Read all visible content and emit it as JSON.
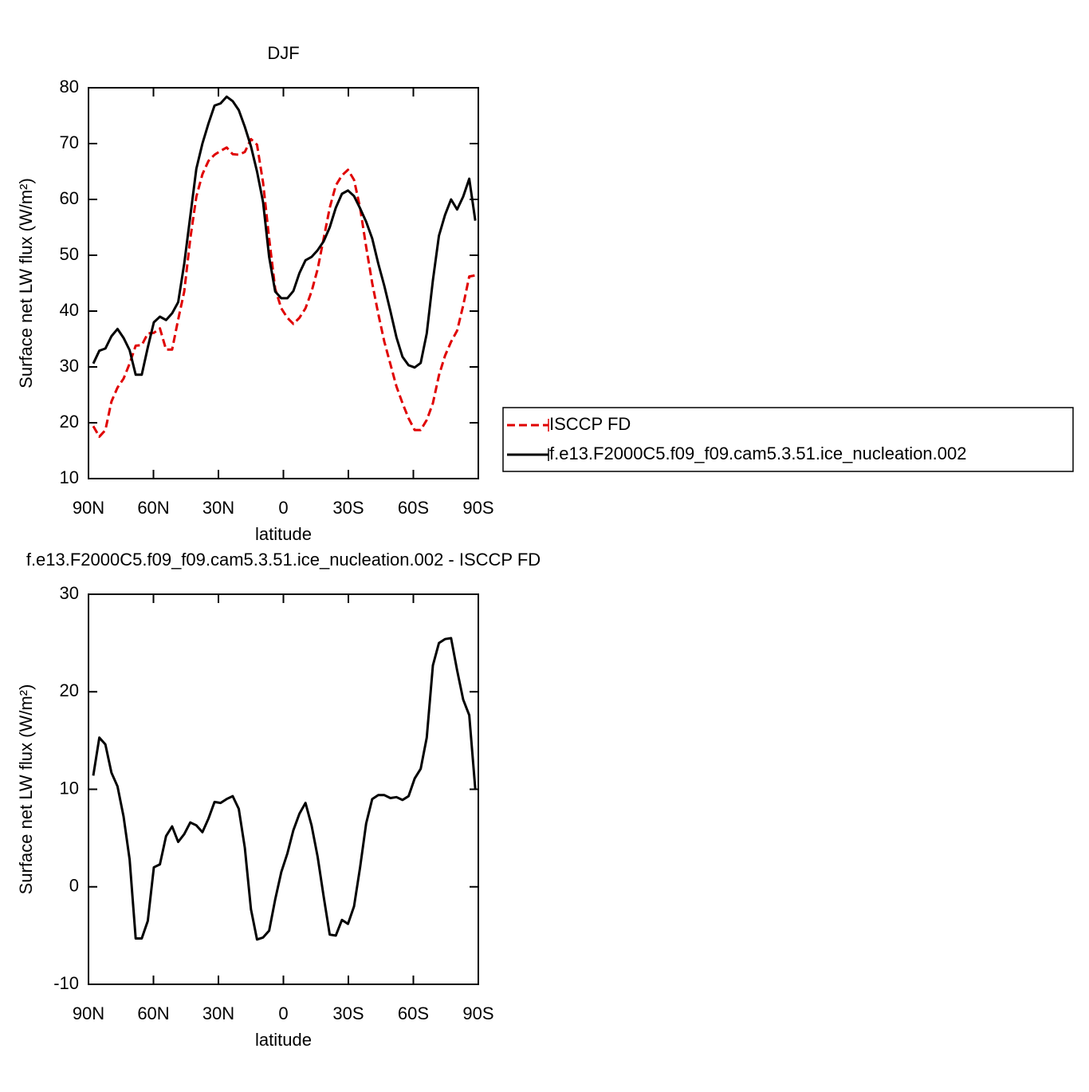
{
  "chart_data": [
    {
      "type": "line",
      "title": "DJF",
      "xlabel": "latitude",
      "ylabel": "Surface net LW flux (W/m²)",
      "x": [
        87.8,
        85.0,
        82.2,
        79.4,
        76.6,
        73.8,
        71.0,
        68.2,
        65.4,
        62.6,
        59.8,
        57.0,
        54.2,
        51.4,
        48.6,
        45.8,
        43.0,
        40.2,
        37.4,
        34.6,
        31.8,
        29.0,
        26.2,
        23.4,
        20.6,
        17.8,
        15.0,
        12.2,
        9.4,
        6.6,
        3.8,
        1.0,
        -1.8,
        -4.6,
        -7.4,
        -10.2,
        -13.0,
        -15.8,
        -18.6,
        -21.4,
        -24.2,
        -27.0,
        -29.8,
        -32.6,
        -35.4,
        -38.2,
        -41.0,
        -43.8,
        -46.6,
        -49.4,
        -52.2,
        -55.0,
        -57.8,
        -60.6,
        -63.4,
        -66.2,
        -69.0,
        -71.8,
        -74.6,
        -77.4,
        -80.2,
        -83.0,
        -85.8,
        -88.6
      ],
      "xlim": [
        90,
        -90
      ],
      "xticks": [
        {
          "value": 90,
          "label": "90N"
        },
        {
          "value": 60,
          "label": "60N"
        },
        {
          "value": 30,
          "label": "30N"
        },
        0,
        {
          "value": -30,
          "label": "30S"
        },
        {
          "value": -60,
          "label": "60S"
        },
        {
          "value": -90,
          "label": "90S"
        }
      ],
      "ylim": [
        10,
        80
      ],
      "yticks": [
        10,
        20,
        30,
        40,
        50,
        60,
        70,
        80
      ],
      "legend": "right",
      "series": [
        {
          "name": "ISCCP FD",
          "color": "#e00000",
          "dash": "dashed",
          "values": [
            19.4,
            17.5,
            18.7,
            23.8,
            26.3,
            27.9,
            30.6,
            33.8,
            33.9,
            36.0,
            36.1,
            36.9,
            33.1,
            33.1,
            38.5,
            43.5,
            53.0,
            60.5,
            64.5,
            66.9,
            68.0,
            68.7,
            69.3,
            68.1,
            68.0,
            68.5,
            70.8,
            69.8,
            63.0,
            53.0,
            44.0,
            40.5,
            38.8,
            37.7,
            38.8,
            40.5,
            43.5,
            47.5,
            53.0,
            58.5,
            62.5,
            64.3,
            65.3,
            63.5,
            58.5,
            51.5,
            45.0,
            39.5,
            34.5,
            30.5,
            26.5,
            23.5,
            20.8,
            18.7,
            18.7,
            20.5,
            23.5,
            28.5,
            32.0,
            34.5,
            36.5,
            41.0,
            46.2,
            46.4
          ]
        },
        {
          "name": "f.e13.F2000C5.f09_f09.cam5.3.51.ice_nucleation.002",
          "color": "#000000",
          "dash": "solid",
          "values": [
            30.6,
            32.9,
            33.3,
            35.5,
            36.8,
            35.2,
            33.0,
            28.6,
            28.6,
            33.5,
            38.0,
            39.0,
            38.4,
            39.6,
            41.6,
            48.5,
            57.0,
            65.5,
            70.0,
            73.6,
            76.8,
            77.2,
            78.4,
            77.6,
            76.0,
            73.0,
            69.5,
            65.0,
            59.5,
            49.7,
            43.5,
            42.3,
            42.3,
            43.6,
            46.8,
            49.1,
            49.7,
            50.9,
            52.5,
            55.0,
            58.5,
            61.0,
            61.6,
            60.6,
            58.4,
            56.0,
            53.0,
            48.5,
            44.5,
            40.0,
            35.3,
            31.8,
            30.3,
            29.9,
            30.7,
            36.0,
            45.5,
            53.5,
            57.2,
            60.0,
            58.2,
            60.5,
            63.7,
            56.2
          ]
        }
      ]
    },
    {
      "type": "line",
      "title": "f.e13.F2000C5.f09_f09.cam5.3.51.ice_nucleation.002 - ISCCP FD",
      "xlabel": "latitude",
      "ylabel": "Surface net LW flux (W/m²)",
      "x": [
        87.8,
        85.0,
        82.2,
        79.4,
        76.6,
        73.8,
        71.0,
        68.2,
        65.4,
        62.6,
        59.8,
        57.0,
        54.2,
        51.4,
        48.6,
        45.8,
        43.0,
        40.2,
        37.4,
        34.6,
        31.8,
        29.0,
        26.2,
        23.4,
        20.6,
        17.8,
        15.0,
        12.2,
        9.4,
        6.6,
        3.8,
        1.0,
        -1.8,
        -4.6,
        -7.4,
        -10.2,
        -13.0,
        -15.8,
        -18.6,
        -21.4,
        -24.2,
        -27.0,
        -29.8,
        -32.6,
        -35.4,
        -38.2,
        -41.0,
        -43.8,
        -46.6,
        -49.4,
        -52.2,
        -55.0,
        -57.8,
        -60.6,
        -63.4,
        -66.2,
        -69.0,
        -71.8,
        -74.6,
        -77.4,
        -80.2,
        -83.0,
        -85.8,
        -88.6
      ],
      "xlim": [
        90,
        -90
      ],
      "xticks": [
        {
          "value": 90,
          "label": "90N"
        },
        {
          "value": 60,
          "label": "60N"
        },
        {
          "value": 30,
          "label": "30N"
        },
        0,
        {
          "value": -30,
          "label": "30S"
        },
        {
          "value": -60,
          "label": "60S"
        },
        {
          "value": -90,
          "label": "90S"
        }
      ],
      "ylim": [
        -10,
        30
      ],
      "yticks": [
        -10,
        0,
        10,
        20,
        30
      ],
      "series": [
        {
          "color": "#000000",
          "dash": "solid",
          "values": [
            11.4,
            15.3,
            14.6,
            11.7,
            10.3,
            7.2,
            2.8,
            -5.3,
            -5.3,
            -3.5,
            2.0,
            2.3,
            5.2,
            6.2,
            4.6,
            5.4,
            6.6,
            6.3,
            5.6,
            7.0,
            8.7,
            8.6,
            9.0,
            9.3,
            8.0,
            4.0,
            -2.3,
            -5.4,
            -5.2,
            -4.5,
            -1.3,
            1.5,
            3.4,
            5.8,
            7.5,
            8.6,
            6.3,
            3.1,
            -1.0,
            -4.9,
            -5.0,
            -3.4,
            -3.8,
            -2.0,
            2.0,
            6.5,
            9.0,
            9.4,
            9.4,
            9.1,
            9.2,
            8.9,
            9.3,
            11.1,
            12.1,
            15.3,
            22.7,
            25.0,
            25.4,
            25.5,
            22.2,
            19.2,
            17.6,
            10.0
          ]
        }
      ]
    }
  ]
}
